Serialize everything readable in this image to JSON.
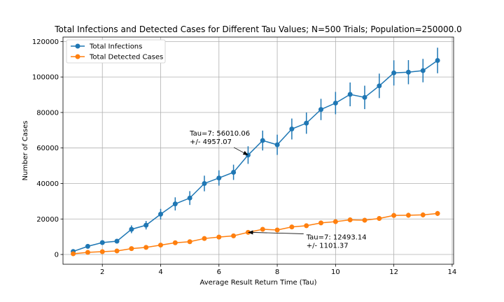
{
  "chart_data": {
    "type": "line",
    "title": "Total Infections and Detected Cases for Different Tau Values; N=500 Trials; Population=250000.0",
    "xlabel": "Average Result Return Time (Tau)",
    "ylabel": "Number of Cases",
    "xlim": [
      0.65,
      14.05
    ],
    "ylim": [
      -5500,
      122500
    ],
    "xticks": [
      2,
      4,
      6,
      8,
      10,
      12,
      14
    ],
    "yticks": [
      0,
      20000,
      40000,
      60000,
      80000,
      100000,
      120000
    ],
    "grid": true,
    "legend_position": "top-left",
    "x": [
      1.0,
      1.5,
      2.0,
      2.5,
      3.0,
      3.5,
      4.0,
      4.5,
      5.0,
      5.5,
      6.0,
      6.5,
      7.0,
      7.5,
      8.0,
      8.5,
      9.0,
      9.5,
      10.0,
      10.5,
      11.0,
      11.5,
      12.0,
      12.5,
      13.0,
      13.5
    ],
    "series": [
      {
        "name": "Total Infections",
        "color": "#1f77b4",
        "marker": "circle",
        "values": [
          1700,
          4600,
          6700,
          7500,
          14200,
          16500,
          22700,
          28500,
          31800,
          40000,
          43100,
          46300,
          56010,
          64200,
          61800,
          70700,
          74000,
          81700,
          85300,
          90200,
          88500,
          95000,
          102300,
          102700,
          103600,
          109300
        ],
        "errors": [
          600,
          800,
          1100,
          1200,
          2200,
          2400,
          3000,
          3700,
          3900,
          4400,
          4300,
          4300,
          4957,
          5600,
          5700,
          5900,
          6000,
          6000,
          6300,
          6700,
          6600,
          6900,
          7100,
          6800,
          6600,
          7200
        ]
      },
      {
        "name": "Total Detected Cases",
        "color": "#ff7f0e",
        "marker": "circle",
        "values": [
          400,
          1200,
          1600,
          2000,
          3300,
          4000,
          5300,
          6600,
          7200,
          9000,
          9800,
          10500,
          12493,
          14200,
          13800,
          15500,
          16200,
          17800,
          18500,
          19500,
          19300,
          20300,
          22000,
          22100,
          22300,
          23100
        ],
        "errors": [
          120,
          200,
          250,
          300,
          400,
          450,
          550,
          650,
          700,
          800,
          850,
          880,
          1101,
          1150,
          1150,
          1200,
          1250,
          1250,
          1300,
          1350,
          1350,
          1350,
          1400,
          1400,
          1400,
          1400
        ]
      }
    ],
    "annotations": [
      {
        "line1": "Tau=7: 56010.06",
        "line2": "+/- 4957.07",
        "x": 7,
        "y": 56010.06,
        "text_x": 5.0,
        "text_y": 67000
      },
      {
        "line1": "Tau=7: 12493.14",
        "line2": "+/- 1101.37",
        "x": 7,
        "y": 12493.14,
        "text_x": 9.0,
        "text_y": 8500
      }
    ]
  }
}
